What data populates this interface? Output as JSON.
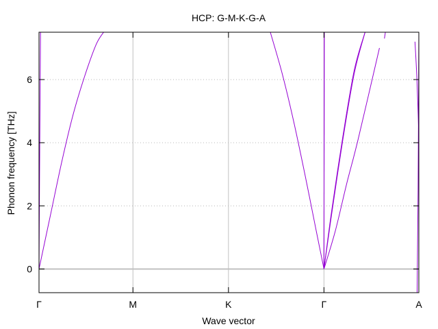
{
  "chart_data": {
    "type": "line",
    "title": "HCP: G-M-K-G-A",
    "xlabel": "Wave vector",
    "ylabel": "Phonon frequency [THz]",
    "ylim": [
      -0.75,
      7.5
    ],
    "xlim": [
      0,
      1
    ],
    "y_ticks": [
      0,
      2,
      4,
      6
    ],
    "y_tick_labels": [
      "0",
      "2",
      "4",
      "6"
    ],
    "x_tick_positions": [
      0,
      0.2473,
      0.4988,
      0.7502,
      1.0
    ],
    "x_tick_labels": [
      "Γ",
      "M",
      "K",
      "Γ",
      "A"
    ],
    "grid": {
      "horizontal": "dotted",
      "vertical": "solid at high-symmetry points"
    },
    "series_color": "#9400d3",
    "zero_line_color": "#c0c0c0",
    "series": [
      {
        "x": [
          0.0,
          0.03,
          0.06,
          0.09,
          0.12,
          0.15,
          0.17
        ],
        "y": [
          0.0,
          1.7,
          3.4,
          4.9,
          6.1,
          7.1,
          7.5
        ]
      },
      {
        "x": [
          0.0,
          0.002,
          0.004
        ],
        "y": [
          0.0,
          4.0,
          7.5
        ]
      },
      {
        "x": [
          0.609,
          0.64,
          0.67,
          0.7,
          0.73,
          0.7502
        ],
        "y": [
          7.5,
          6.2,
          4.7,
          3.0,
          1.2,
          0.0
        ]
      },
      {
        "x": [
          0.7502,
          0.7509
        ],
        "y": [
          0.0,
          7.5
        ]
      },
      {
        "x": [
          0.7502,
          0.7511
        ],
        "y": [
          0.0,
          7.5
        ]
      },
      {
        "x": [
          0.7502,
          0.77,
          0.8,
          0.83,
          0.8584
        ],
        "y": [
          0.0,
          1.8,
          4.2,
          6.3,
          7.5
        ]
      },
      {
        "x": [
          0.7502,
          0.77,
          0.8,
          0.83,
          0.8584
        ],
        "y": [
          0.0,
          1.7,
          4.1,
          6.2,
          7.5
        ]
      },
      {
        "x": [
          0.7502,
          0.78,
          0.81,
          0.84,
          0.8963
        ],
        "y": [
          0.0,
          1.2,
          2.7,
          4.1,
          7.0
        ]
      },
      {
        "x": [
          0.9094,
          0.9119
        ],
        "y": [
          7.3,
          7.5
        ]
      },
      {
        "x": [
          0.9898,
          0.995,
          1.0
        ],
        "y": [
          7.2,
          6.0,
          4.2
        ]
      },
      {
        "x": [
          0.9955,
          0.998,
          1.0
        ],
        "y": [
          -0.75,
          2.5,
          7.5
        ]
      }
    ]
  }
}
